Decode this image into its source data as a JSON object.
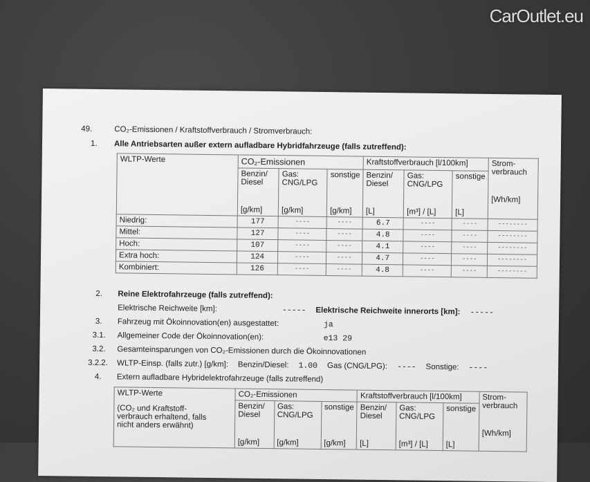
{
  "section": {
    "number": "49.",
    "title": "CO₂-Emissionen / Kraftstoffverbrauch / Stromverbrauch:"
  },
  "item1": {
    "number": "1.",
    "title": "Alle Antriebsarten außer extern aufladbare Hybridfahrzeuge (falls zutreffend):"
  },
  "table1": {
    "header": {
      "wltp": "WLTP-Werte",
      "co2": "CO₂-Emissionen",
      "fuel": "Kraftstoffverbrauch [l/100km]",
      "power": "Strom-verbrauch"
    },
    "subheaders": [
      "Benzin/ Diesel",
      "Gas: CNG/LPG",
      "sonstige",
      "Benzin/ Diesel",
      "Gas: CNG/LPG",
      "sonstige"
    ],
    "units": [
      "[g/km]",
      "[g/km]",
      "[g/km]",
      "[L]",
      "[m³] / [L]",
      "[L]",
      "[Wh/km]"
    ],
    "rows": [
      {
        "label": "Niedrig:",
        "co2_bd": "177",
        "co2_gas": "----",
        "co2_other": "----",
        "fuel_bd": "6.7",
        "fuel_gas": "----",
        "fuel_other": "----",
        "power": "--------"
      },
      {
        "label": "Mittel:",
        "co2_bd": "127",
        "co2_gas": "----",
        "co2_other": "----",
        "fuel_bd": "4.8",
        "fuel_gas": "----",
        "fuel_other": "----",
        "power": "--------"
      },
      {
        "label": "Hoch:",
        "co2_bd": "107",
        "co2_gas": "----",
        "co2_other": "----",
        "fuel_bd": "4.1",
        "fuel_gas": "----",
        "fuel_other": "----",
        "power": "--------"
      },
      {
        "label": "Extra hoch:",
        "co2_bd": "124",
        "co2_gas": "----",
        "co2_other": "----",
        "fuel_bd": "4.7",
        "fuel_gas": "----",
        "fuel_other": "----",
        "power": "--------"
      },
      {
        "label": "Kombiniert:",
        "co2_bd": "126",
        "co2_gas": "----",
        "co2_other": "----",
        "fuel_bd": "4.8",
        "fuel_gas": "----",
        "fuel_other": "----",
        "power": "--------"
      }
    ]
  },
  "item2": {
    "number": "2.",
    "title": "Reine Elektrofahrzeuge (falls zutreffend):",
    "range_label": "Elektrische Reichweite [km]:",
    "range_value": "-----",
    "range_city_label": "Elektrische Reichweite innerorts [km]:",
    "range_city_value": "-----"
  },
  "item3": {
    "number": "3.",
    "label": "Fahrzeug mit Ökoinnovation(en) ausgestattet:",
    "value": "ja"
  },
  "item31": {
    "number": "3.1.",
    "label": "Allgemeiner Code der Ökoinnovation(en):",
    "value": "e13 29"
  },
  "item32": {
    "number": "3.2.",
    "label": "Gesamteinsparungen von CO₂-Emissionen durch die Ökoinnovationen"
  },
  "item322": {
    "number": "3.2.2.",
    "label": "WLTP-Einsp. (falls zutr.) [g/km]:",
    "bd_label": "Benzin/Diesel:",
    "bd_value": "1.00",
    "gas_label": "Gas (CNG/LPG):",
    "gas_value": "----",
    "other_label": "Sonstige:",
    "other_value": "----"
  },
  "item4": {
    "number": "4.",
    "title": "Extern aufladbare Hybridelektrofahrzeuge (falls zutreffend)"
  },
  "table2": {
    "header": {
      "wltp": "WLTP-Werte",
      "note": "(CO₂ und Kraftstoff-verbrauch erhaltend, falls nicht anders erwähnt)",
      "co2": "CO₂-Emissionen",
      "fuel": "Kraftstoffverbrauch [l/100km]",
      "power": "Strom-verbrauch"
    },
    "subheaders": [
      "Benzin/ Diesel",
      "Gas: CNG/LPG",
      "sonstige",
      "Benzin/ Diesel",
      "Gas: CNG/LPG",
      "sonstige"
    ],
    "units": [
      "[g/km]",
      "[g/km]",
      "[g/km]",
      "[L]",
      "[m³] / [L]",
      "[L]",
      "[Wh/km]"
    ]
  },
  "watermark": "CarOutlet.eu"
}
